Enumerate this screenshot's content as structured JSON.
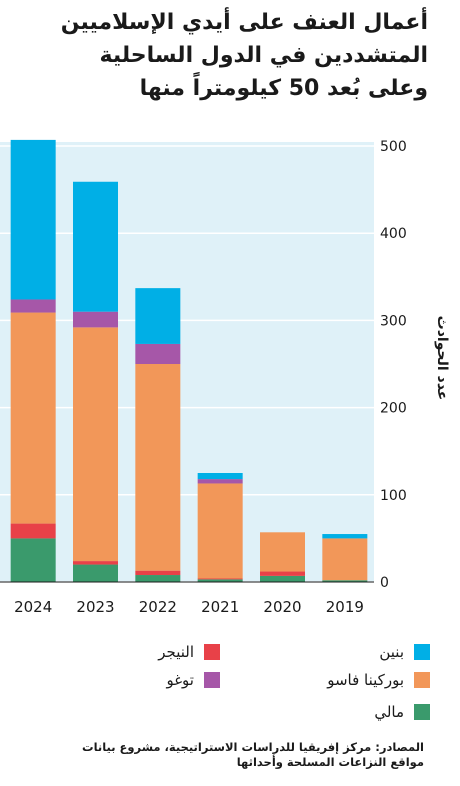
{
  "title": {
    "line1": "أعمال العنف على أيدي الإسلاميين",
    "line2": "المتشددين في الدول الساحلية",
    "line3": "وعلى بُعد 50 كيلومتراً منها"
  },
  "chart_data": {
    "type": "bar",
    "stacked": true,
    "categories": [
      "2024",
      "2023",
      "2022",
      "2021",
      "2020",
      "2019"
    ],
    "ylabel": "عدد الحوادث",
    "ylim": [
      0,
      500
    ],
    "yticks": [
      0,
      100,
      200,
      300,
      400,
      500
    ],
    "grid": true,
    "series": [
      {
        "name": "مالي",
        "color": "#3a9a6c",
        "values": [
          50,
          20,
          8,
          3,
          7,
          2
        ]
      },
      {
        "name": "النيجر",
        "color": "#e84148",
        "values": [
          17,
          4,
          5,
          1,
          5,
          0
        ]
      },
      {
        "name": "بوركينا فاسو",
        "color": "#f29759",
        "values": [
          242,
          268,
          237,
          109,
          45,
          48
        ]
      },
      {
        "name": "توغو",
        "color": "#a657a8",
        "values": [
          15,
          18,
          23,
          5,
          0,
          0
        ]
      },
      {
        "name": "بنين",
        "color": "#00afe6",
        "values": [
          183,
          149,
          64,
          7,
          0,
          5
        ]
      }
    ]
  },
  "legend": [
    {
      "name": "بنين",
      "color": "#00afe6"
    },
    {
      "name": "النيجر",
      "color": "#e84148"
    },
    {
      "name": "بوركينا فاسو",
      "color": "#f29759"
    },
    {
      "name": "توغو",
      "color": "#a657a8"
    },
    {
      "name": "مالي",
      "color": "#3a9a6c"
    }
  ],
  "source": {
    "line1": "المصادر: مركز إفريقيا للدراسات الاستراتيجية، مشروع بيانات",
    "line2": "مواقع النزاعات المسلحة وأحداثها"
  }
}
